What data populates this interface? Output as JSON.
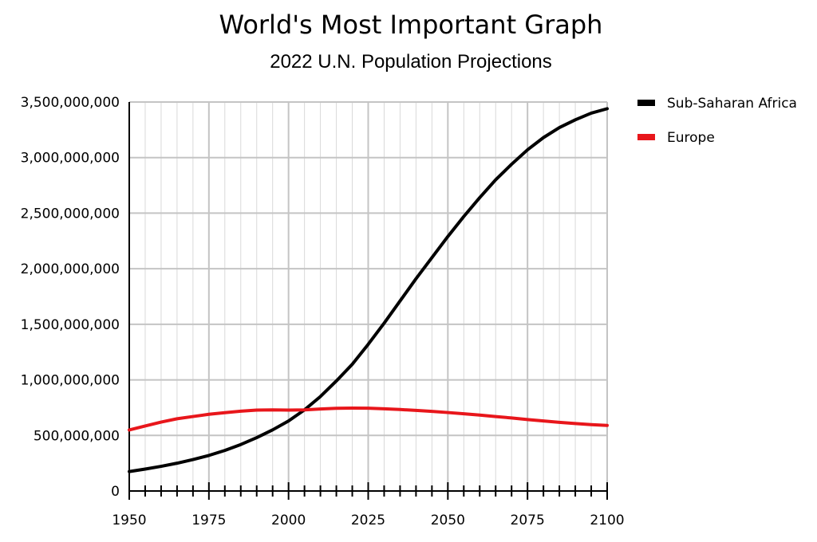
{
  "chart_data": {
    "type": "line",
    "title": "World's Most Important Graph",
    "subtitle": "2022 U.N. Population Projections",
    "xlabel": "",
    "ylabel": "",
    "xlim": [
      1950,
      2100
    ],
    "ylim": [
      0,
      3500000000
    ],
    "x_ticks": [
      1950,
      1975,
      2000,
      2025,
      2050,
      2075,
      2100
    ],
    "x_tick_labels": [
      "1950",
      "1975",
      "2000",
      "2025",
      "2050",
      "2075",
      "2100"
    ],
    "y_ticks": [
      0,
      500000000,
      1000000000,
      1500000000,
      2000000000,
      2500000000,
      3000000000,
      3500000000
    ],
    "y_tick_labels": [
      "0",
      "500,000,000",
      "1,000,000,000",
      "1,500,000,000",
      "2,000,000,000",
      "2,500,000,000",
      "3,000,000,000",
      "3,500,000,000"
    ],
    "grid": true,
    "legend_position": "right",
    "x": [
      1950,
      1955,
      1960,
      1965,
      1970,
      1975,
      1980,
      1985,
      1990,
      1995,
      2000,
      2005,
      2010,
      2015,
      2020,
      2025,
      2030,
      2035,
      2040,
      2045,
      2050,
      2055,
      2060,
      2065,
      2070,
      2075,
      2080,
      2085,
      2090,
      2095,
      2100
    ],
    "series": [
      {
        "name": "Sub-Saharan Africa",
        "color": "#000000",
        "values": [
          175000000,
          197000000,
          222000000,
          250000000,
          283000000,
          320000000,
          365000000,
          418000000,
          480000000,
          550000000,
          630000000,
          730000000,
          850000000,
          990000000,
          1140000000,
          1320000000,
          1510000000,
          1710000000,
          1910000000,
          2100000000,
          2290000000,
          2470000000,
          2640000000,
          2800000000,
          2940000000,
          3070000000,
          3180000000,
          3270000000,
          3340000000,
          3400000000,
          3440000000
        ]
      },
      {
        "name": "Europe",
        "color": "#e8161b",
        "values": [
          549000000,
          585000000,
          620000000,
          650000000,
          670000000,
          690000000,
          705000000,
          718000000,
          728000000,
          730000000,
          728000000,
          730000000,
          738000000,
          744000000,
          746000000,
          745000000,
          740000000,
          733000000,
          725000000,
          716000000,
          706000000,
          695000000,
          683000000,
          670000000,
          657000000,
          643000000,
          630000000,
          618000000,
          607000000,
          597000000,
          590000000
        ]
      }
    ]
  }
}
